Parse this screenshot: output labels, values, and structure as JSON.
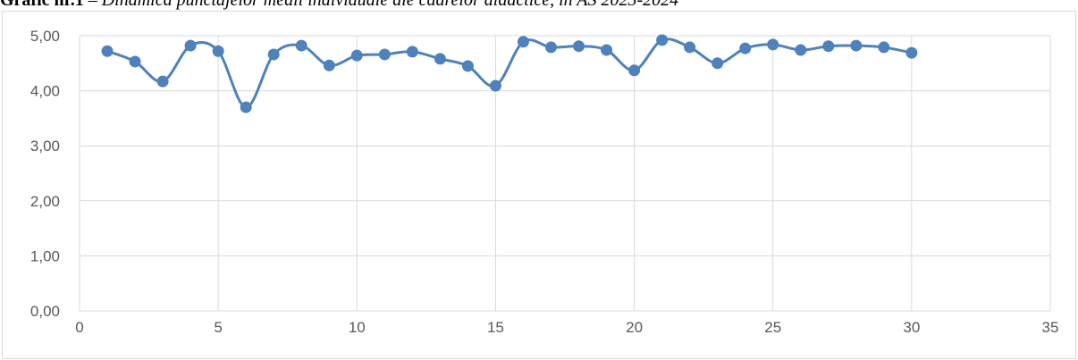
{
  "chart_data": {
    "type": "scatter-smooth",
    "title": "Grafic nr.1",
    "subtitle": "– Dinamica punctajelor medii individuale ale cadrelor didactice, în AS 2023-2024",
    "x": [
      1,
      2,
      3,
      4,
      5,
      6,
      7,
      8,
      9,
      10,
      11,
      12,
      13,
      14,
      15,
      16,
      17,
      18,
      19,
      20,
      21,
      22,
      23,
      24,
      25,
      26,
      27,
      28,
      29,
      30
    ],
    "series": [
      {
        "color": "#4f81bd",
        "values": [
          4.72,
          4.53,
          4.17,
          4.82,
          4.72,
          3.7,
          4.66,
          4.82,
          4.46,
          4.64,
          4.66,
          4.71,
          4.58,
          4.45,
          4.09,
          4.89,
          4.79,
          4.81,
          4.74,
          4.37,
          4.92,
          4.79,
          4.5,
          4.77,
          4.84,
          4.74,
          4.81,
          4.82,
          4.79,
          4.69
        ]
      }
    ],
    "xlim": [
      0,
      35
    ],
    "xticks": [
      0,
      5,
      10,
      15,
      20,
      25,
      30,
      35
    ],
    "ylim": [
      0,
      5
    ],
    "yticks": [
      {
        "value": 0,
        "label": "0,00"
      },
      {
        "value": 1,
        "label": "1,00"
      },
      {
        "value": 2,
        "label": "2,00"
      },
      {
        "value": 3,
        "label": "3,00"
      },
      {
        "value": 4,
        "label": "4,00"
      },
      {
        "value": 5,
        "label": "5,00"
      }
    ],
    "grid": true
  }
}
